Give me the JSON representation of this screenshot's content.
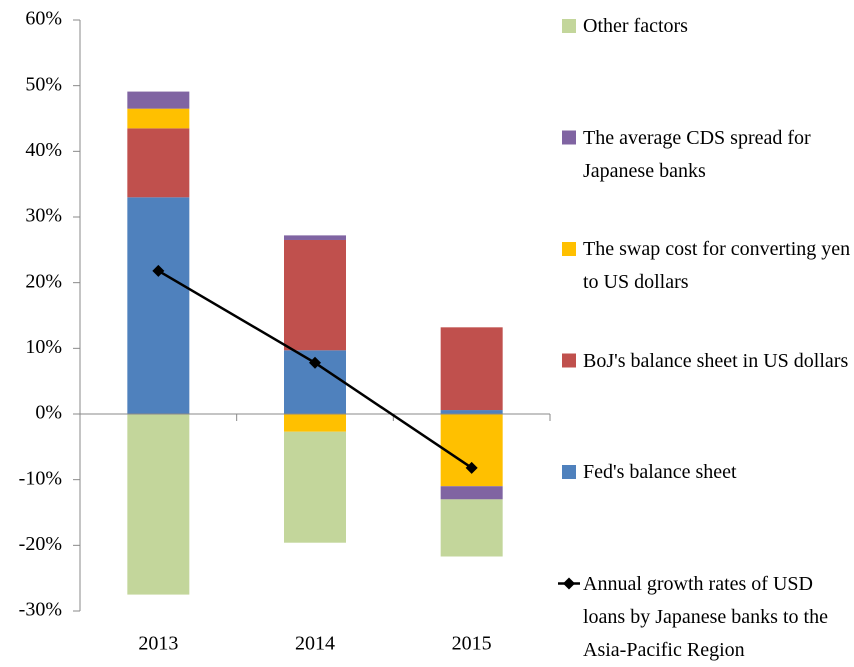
{
  "chart_data": {
    "type": "bar",
    "categories": [
      "2013",
      "2014",
      "2015"
    ],
    "series": [
      {
        "name": "Fed's balance sheet",
        "color": "#4f81bd",
        "values": [
          33,
          9.7,
          0.6
        ]
      },
      {
        "name": "BoJ's balance sheet in US dollars",
        "color": "#c0504d",
        "values": [
          10.5,
          16.8,
          12.6
        ]
      },
      {
        "name": "The swap cost for converting yen to US dollars",
        "color": "#ffc000",
        "values": [
          3,
          -2.7,
          -11
        ]
      },
      {
        "name": "The average CDS spread for Japanese banks",
        "color": "#8064a2",
        "values": [
          2.6,
          0.7,
          -2
        ]
      },
      {
        "name": "Other factors",
        "color": "#c3d69b",
        "values": [
          -27.5,
          -16.9,
          -8.7
        ]
      },
      {
        "name": "Annual growth rates of USD loans by Japanese banks to the Asia-Pacific Region",
        "type": "line",
        "color": "#000000",
        "values": [
          21.8,
          7.8,
          -8.2
        ]
      }
    ],
    "ylim": [
      -30,
      60
    ],
    "yticks": [
      {
        "value": -30,
        "label": "-30%"
      },
      {
        "value": -20,
        "label": "-20%"
      },
      {
        "value": -10,
        "label": "-10%"
      },
      {
        "value": 0,
        "label": "0%"
      },
      {
        "value": 10,
        "label": "10%"
      },
      {
        "value": 20,
        "label": "20%"
      },
      {
        "value": 30,
        "label": "30%"
      },
      {
        "value": 40,
        "label": "40%"
      },
      {
        "value": 50,
        "label": "50%"
      },
      {
        "value": 60,
        "label": "60%"
      }
    ],
    "legend_order": [
      4,
      3,
      2,
      1,
      0,
      5
    ]
  }
}
